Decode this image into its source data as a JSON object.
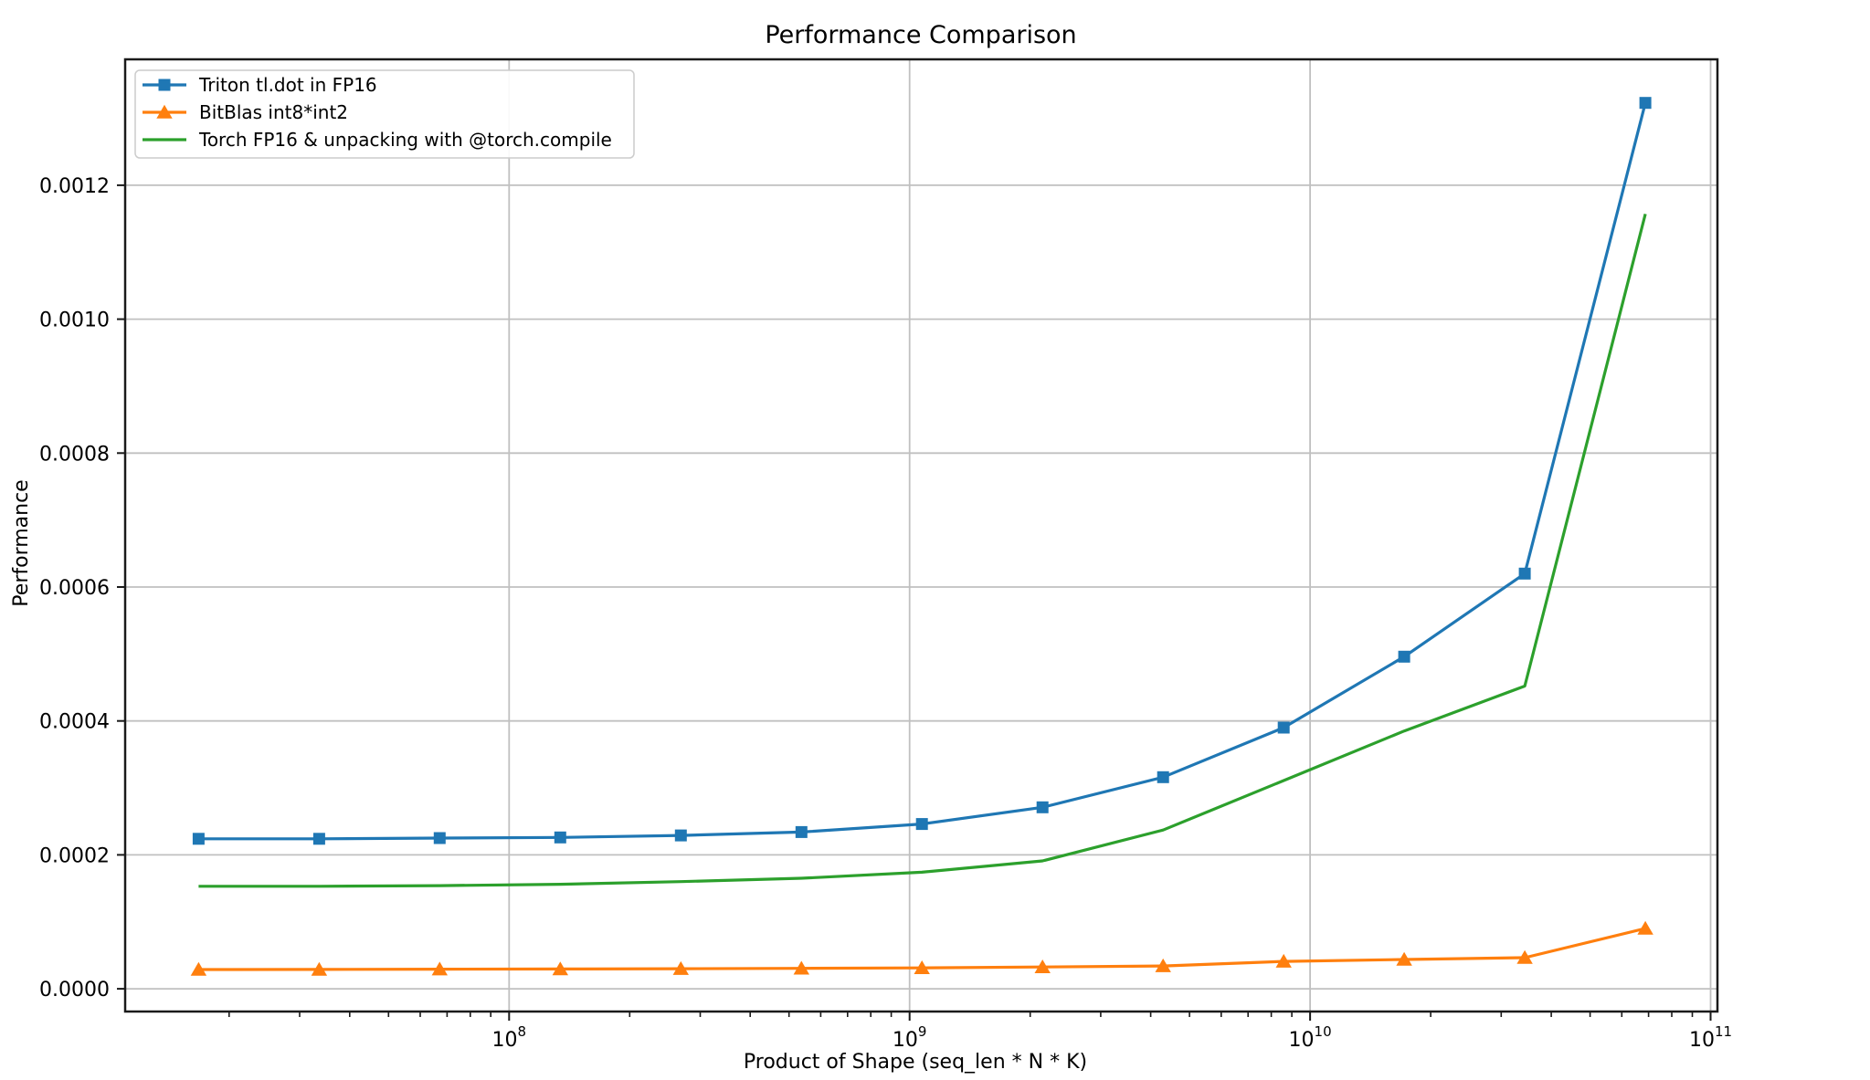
{
  "chart_data": {
    "type": "line",
    "title": "Performance Comparison",
    "xlabel": "Product of Shape (seq_len * N * K)",
    "ylabel": "Performance",
    "x_scale": "log",
    "grid": true,
    "legend_position": "upper-left",
    "x": [
      16777216,
      33554432,
      67108864,
      134217728,
      268435456,
      536870912,
      1073741824,
      2147483648,
      4294967296,
      8589934592,
      17179869184,
      34359738368,
      68719476736
    ],
    "series": [
      {
        "name": "Triton tl.dot in FP16",
        "color": "#1f77b4",
        "marker": "square",
        "values": [
          0.000224,
          0.000224,
          0.000225,
          0.000226,
          0.000229,
          0.000234,
          0.000246,
          0.000271,
          0.000316,
          0.00039,
          0.000496,
          0.00062,
          0.001323
        ]
      },
      {
        "name": "BitBlas int8*int2",
        "color": "#ff7f0e",
        "marker": "triangle",
        "values": [
          2.87e-05,
          2.89e-05,
          2.92e-05,
          2.96e-05,
          3e-05,
          3.05e-05,
          3.12e-05,
          3.25e-05,
          3.4e-05,
          4.08e-05,
          4.37e-05,
          4.64e-05,
          9e-05
        ]
      },
      {
        "name": "Torch FP16 & unpacking with @torch.compile",
        "color": "#2ca02c",
        "marker": "none",
        "values": [
          0.000153,
          0.000153,
          0.000154,
          0.000156,
          0.00016,
          0.000165,
          0.000174,
          0.000191,
          0.000237,
          0.000311,
          0.000385,
          0.000452,
          0.001157
        ]
      }
    ],
    "xlim": [
      11000000,
      104000000000
    ],
    "ylim": [
      -3.4e-05,
      0.001388
    ],
    "x_major_ticks": [
      100000000,
      1000000000,
      10000000000,
      100000000000
    ],
    "x_tick_base": "10",
    "x_tick_exponents": [
      "8",
      "9",
      "10",
      "11"
    ],
    "y_ticks": [
      0,
      0.0002,
      0.0004,
      0.0006,
      0.0008,
      0.001,
      0.0012
    ],
    "y_tick_labels": [
      "0.0000",
      "0.0002",
      "0.0004",
      "0.0006",
      "0.0008",
      "0.0010",
      "0.0012"
    ],
    "grid_color": "#c0c0c0",
    "axis_color": "#1a1a1a",
    "legend_border_color": "#cccccc",
    "background_color": "#ffffff"
  }
}
